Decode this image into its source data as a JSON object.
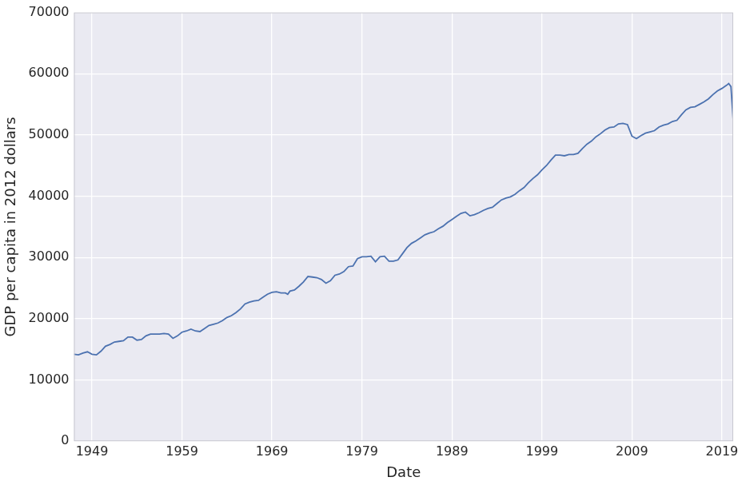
{
  "chart_data": {
    "type": "line",
    "x_label": "Date",
    "y_label": "GDP per capita in 2012 dollars",
    "x": [
      1947.0,
      1947.5,
      1948.0,
      1948.5,
      1949.0,
      1949.5,
      1950.0,
      1950.5,
      1951.0,
      1951.5,
      1952.0,
      1952.5,
      1953.0,
      1953.5,
      1954.0,
      1954.5,
      1955.0,
      1955.5,
      1956.0,
      1956.5,
      1957.0,
      1957.5,
      1958.0,
      1958.5,
      1959.0,
      1959.5,
      1960.0,
      1960.5,
      1961.0,
      1961.5,
      1962.0,
      1962.5,
      1963.0,
      1963.5,
      1964.0,
      1964.5,
      1965.0,
      1965.5,
      1966.0,
      1966.5,
      1967.0,
      1967.5,
      1968.0,
      1968.5,
      1969.0,
      1969.5,
      1970.0,
      1970.5,
      1970.75,
      1971.0,
      1971.5,
      1972.0,
      1972.5,
      1973.0,
      1973.5,
      1974.0,
      1974.5,
      1975.0,
      1975.5,
      1976.0,
      1976.5,
      1977.0,
      1977.5,
      1978.0,
      1978.5,
      1979.0,
      1979.5,
      1980.0,
      1980.5,
      1981.0,
      1981.5,
      1982.0,
      1982.5,
      1983.0,
      1983.5,
      1984.0,
      1984.5,
      1985.0,
      1985.5,
      1986.0,
      1986.5,
      1987.0,
      1987.5,
      1988.0,
      1988.5,
      1989.0,
      1989.5,
      1990.0,
      1990.5,
      1991.0,
      1991.5,
      1992.0,
      1992.5,
      1993.0,
      1993.5,
      1994.0,
      1994.5,
      1995.0,
      1995.5,
      1996.0,
      1996.5,
      1997.0,
      1997.5,
      1998.0,
      1998.5,
      1999.0,
      1999.5,
      2000.0,
      2000.5,
      2001.0,
      2001.5,
      2002.0,
      2002.5,
      2003.0,
      2003.5,
      2004.0,
      2004.5,
      2005.0,
      2005.5,
      2006.0,
      2006.5,
      2007.0,
      2007.5,
      2008.0,
      2008.5,
      2009.0,
      2009.5,
      2010.0,
      2010.5,
      2011.0,
      2011.5,
      2012.0,
      2012.5,
      2013.0,
      2013.5,
      2014.0,
      2014.5,
      2015.0,
      2015.5,
      2016.0,
      2016.5,
      2017.0,
      2017.5,
      2018.0,
      2018.5,
      2019.0,
      2019.5,
      2019.75,
      2020.0,
      2020.25
    ],
    "values": [
      14200,
      14100,
      14400,
      14600,
      14200,
      14100,
      14700,
      15500,
      15800,
      16200,
      16300,
      16400,
      17000,
      17000,
      16500,
      16600,
      17200,
      17500,
      17500,
      17500,
      17600,
      17500,
      16800,
      17200,
      17800,
      18000,
      18300,
      18000,
      17900,
      18400,
      18900,
      19100,
      19300,
      19700,
      20200,
      20500,
      21000,
      21600,
      22400,
      22700,
      22900,
      23000,
      23500,
      24000,
      24300,
      24400,
      24200,
      24200,
      24000,
      24500,
      24700,
      25300,
      26000,
      26900,
      26800,
      26700,
      26400,
      25800,
      26200,
      27100,
      27300,
      27700,
      28500,
      28600,
      29800,
      30100,
      30100,
      30200,
      29300,
      30100,
      30200,
      29400,
      29400,
      29600,
      30600,
      31600,
      32300,
      32700,
      33200,
      33700,
      34000,
      34200,
      34700,
      35100,
      35700,
      36200,
      36700,
      37200,
      37400,
      36800,
      37000,
      37300,
      37700,
      38000,
      38200,
      38800,
      39400,
      39700,
      39900,
      40300,
      40900,
      41400,
      42200,
      42900,
      43500,
      44300,
      45000,
      45900,
      46700,
      46700,
      46600,
      46800,
      46800,
      47000,
      47800,
      48500,
      49000,
      49700,
      50200,
      50800,
      51200,
      51300,
      51800,
      51900,
      51700,
      49800,
      49400,
      49900,
      50300,
      50500,
      50700,
      51300,
      51600,
      51800,
      52200,
      52400,
      53300,
      54100,
      54500,
      54600,
      55000,
      55400,
      55900,
      56600,
      57200,
      57600,
      58100,
      58400,
      57900,
      52400
    ],
    "color": "#4c72b0",
    "xlim": [
      1947.0,
      2020.25
    ],
    "xticks": [
      1949,
      1959,
      1969,
      1979,
      1989,
      1999,
      2009,
      2019
    ],
    "ylim": [
      0,
      70000
    ],
    "yticks": [
      0,
      10000,
      20000,
      30000,
      40000,
      50000,
      60000,
      70000
    ],
    "grid": true
  }
}
